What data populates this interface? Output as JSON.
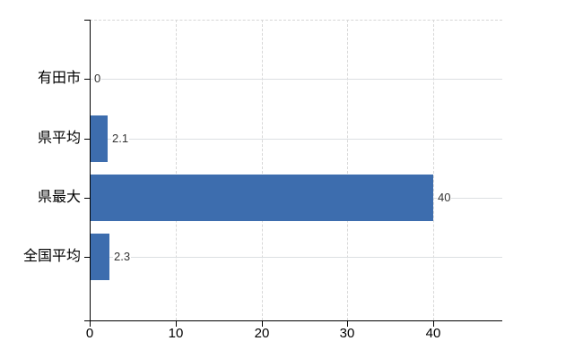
{
  "chart_data": {
    "type": "bar",
    "orientation": "horizontal",
    "title": "",
    "xlabel": "",
    "ylabel": "",
    "categories": [
      "有田市",
      "県平均",
      "県最大",
      "全国平均"
    ],
    "values": [
      0,
      2.1,
      40,
      2.3
    ],
    "value_labels": [
      "0",
      "2.1",
      "40",
      "2.3"
    ],
    "x_ticks": [
      0,
      10,
      20,
      30,
      40
    ],
    "x_tick_labels": [
      "0",
      "10",
      "20",
      "30",
      "40"
    ],
    "xlim": [
      0,
      48
    ],
    "grid": true,
    "legend": "none",
    "colors": {
      "bar": "#3d6dae",
      "axis_line": "#000000",
      "vertical_gridline": "#d8d8d8",
      "horizontal_gridline": "#dcdfe2",
      "category_label": "#000000",
      "tick_label": "#000000",
      "value_label": "#333333",
      "background": "#ffffff"
    }
  }
}
